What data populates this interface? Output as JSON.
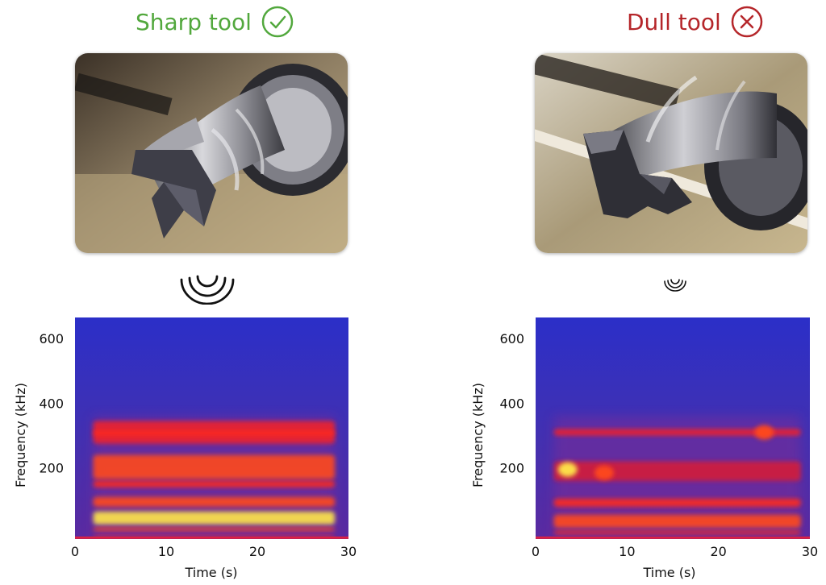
{
  "colors": {
    "sharp": "#52a83d",
    "dull": "#b5262a",
    "spectrogram_background": "#3a2bb8",
    "band_hot": "#ff2a18",
    "band_peak": "#ffe23a"
  },
  "chart_data": [
    {
      "type": "heatmap",
      "title": "Sharp tool",
      "status_icon": "check-circle-icon",
      "sound_icon": "sound-waves-large-icon",
      "xlabel": "Time (s)",
      "ylabel": "Frequency (kHz)",
      "xlim": [
        0,
        30
      ],
      "ylim": [
        -20,
        665
      ],
      "xticks": [
        "0",
        "10",
        "20",
        "30"
      ],
      "yticks": [
        "200",
        "400",
        "600"
      ],
      "active_time": [
        2,
        28.5
      ],
      "bands": [
        {
          "freq_low": 275,
          "freq_high": 345,
          "intensity": 0.55
        },
        {
          "freq_low": 300,
          "freq_high": 315,
          "intensity": 0.75
        },
        {
          "freq_low": 165,
          "freq_high": 240,
          "intensity": 0.85
        },
        {
          "freq_low": 140,
          "freq_high": 160,
          "intensity": 0.8
        },
        {
          "freq_low": 80,
          "freq_high": 110,
          "intensity": 0.85
        },
        {
          "freq_low": 25,
          "freq_high": 65,
          "intensity": 1.0
        },
        {
          "freq_low": 5,
          "freq_high": 15,
          "intensity": 0.9
        },
        {
          "freq_low": -10,
          "freq_high": -5,
          "intensity": 0.8
        }
      ]
    },
    {
      "type": "heatmap",
      "title": "Dull tool",
      "status_icon": "x-circle-icon",
      "sound_icon": "sound-waves-small-icon",
      "xlabel": "Time (s)",
      "ylabel": "Frequency (kHz)",
      "xlim": [
        0,
        30
      ],
      "ylim": [
        -20,
        665
      ],
      "xticks": [
        "0",
        "10",
        "20",
        "30"
      ],
      "yticks": [
        "200",
        "400",
        "600"
      ],
      "active_time": [
        2,
        29
      ],
      "bands": [
        {
          "freq_low": 300,
          "freq_high": 320,
          "intensity": 0.6
        },
        {
          "freq_low": 160,
          "freq_high": 220,
          "intensity": 0.45
        },
        {
          "freq_low": 80,
          "freq_high": 105,
          "intensity": 0.75
        },
        {
          "freq_low": 15,
          "freq_high": 55,
          "intensity": 0.85
        },
        {
          "freq_low": -5,
          "freq_high": 5,
          "intensity": 0.7
        }
      ],
      "spots": [
        {
          "time": 3.5,
          "freq": 195,
          "intensity": 0.95
        },
        {
          "time": 7.5,
          "freq": 185,
          "intensity": 0.85
        },
        {
          "time": 25,
          "freq": 310,
          "intensity": 0.9
        }
      ]
    }
  ]
}
